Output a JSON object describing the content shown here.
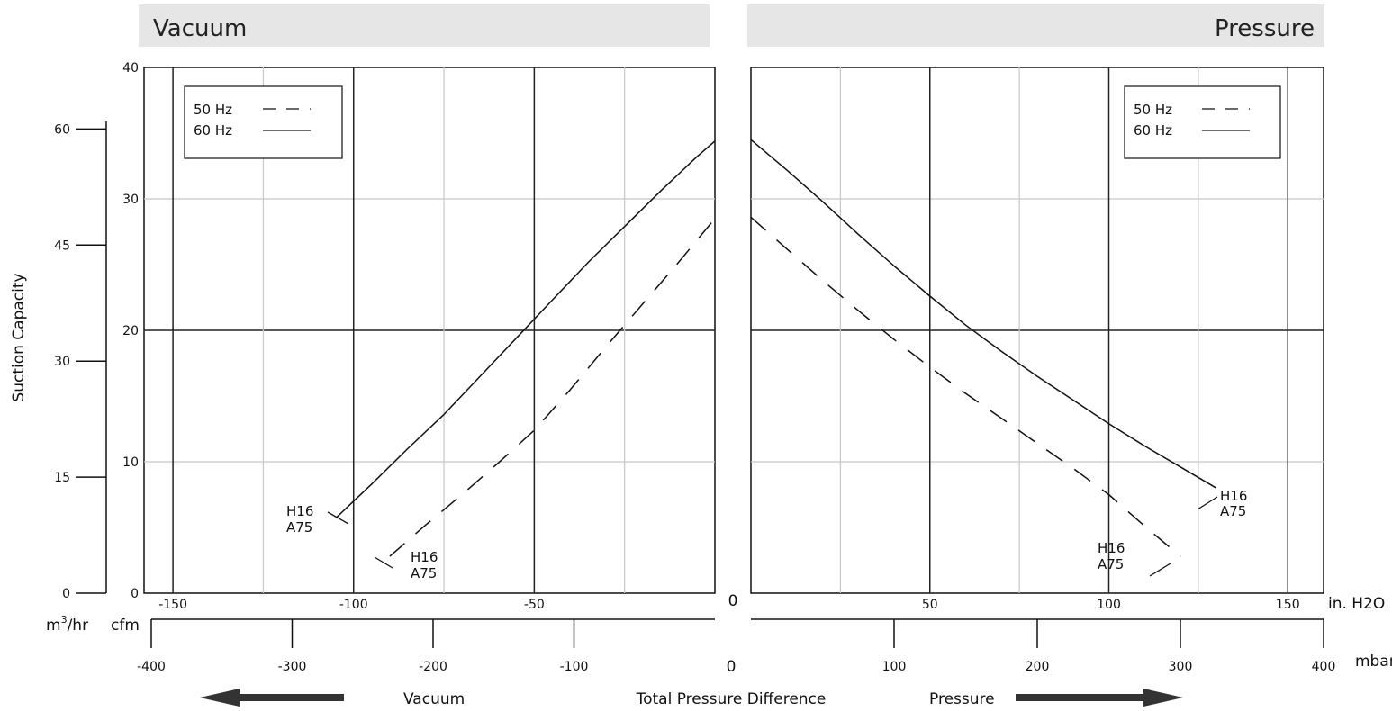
{
  "panels": {
    "vacuum_title": "Vacuum",
    "pressure_title": "Pressure"
  },
  "axes": {
    "ylabel": "Suction Capacity",
    "m3hr_unit": "m",
    "m3hr_sup": "3",
    "m3hr_suffix": "/hr",
    "cfm_unit": "cfm",
    "inh2o_unit": "in. H2O",
    "mbar_unit": "mbar",
    "zero_label": "0",
    "cfm_ticks": [
      "0",
      "10",
      "20",
      "30",
      "40"
    ],
    "m3hr_ticks": [
      "0",
      "15",
      "30",
      "45",
      "60"
    ],
    "vac_inh2o_ticks": [
      "-150",
      "-100",
      "-50"
    ],
    "prs_inh2o_ticks": [
      "50",
      "100",
      "150"
    ],
    "vac_mbar_ticks": [
      "-400",
      "-300",
      "-200",
      "-100"
    ],
    "prs_mbar_ticks": [
      "100",
      "200",
      "300",
      "400"
    ]
  },
  "bottom": {
    "vacuum_label": "Vacuum",
    "center_label": "Total Pressure Difference",
    "pressure_label": "Pressure"
  },
  "legend": {
    "hz50": "50 Hz",
    "hz60": "60 Hz"
  },
  "annotations": {
    "model_line1": "H16",
    "model_line2": "A75"
  },
  "colors": {
    "header_bg": "#e6e6e6",
    "grid_major": "#222222",
    "grid_minor": "#c8c8c8",
    "line": "#111111",
    "arrow": "#333333"
  },
  "chart_data": [
    {
      "panel": "Vacuum",
      "type": "line",
      "xlabel": "in. H2O",
      "ylabel": "cfm",
      "xlim": [
        -160,
        0
      ],
      "ylim": [
        0,
        40
      ],
      "series": [
        {
          "name": "60 Hz",
          "style": "solid",
          "x": [
            -105,
            -95,
            -85,
            -75,
            -65,
            -55,
            -45,
            -35,
            -25,
            -15,
            -5,
            0
          ],
          "y": [
            5.7,
            8.3,
            11.0,
            13.6,
            16.5,
            19.4,
            22.3,
            25.2,
            27.9,
            30.6,
            33.2,
            34.4
          ]
        },
        {
          "name": "50 Hz",
          "style": "dashed",
          "x": [
            -90,
            -80,
            -70,
            -60,
            -50,
            -40,
            -30,
            -20,
            -10,
            0
          ],
          "y": [
            2.8,
            5.2,
            7.5,
            9.9,
            12.4,
            15.5,
            18.8,
            22.0,
            25.2,
            28.5
          ]
        }
      ],
      "annotations": [
        {
          "text": "H16 A75",
          "series": "60 Hz",
          "at_x": -105
        },
        {
          "text": "H16 A75",
          "series": "50 Hz",
          "at_x": -90
        }
      ]
    },
    {
      "panel": "Pressure",
      "type": "line",
      "xlabel": "in. H2O",
      "ylabel": "cfm",
      "xlim": [
        0,
        160
      ],
      "ylim": [
        0,
        40
      ],
      "series": [
        {
          "name": "60 Hz",
          "style": "solid",
          "x": [
            0,
            10,
            20,
            30,
            40,
            50,
            60,
            70,
            80,
            90,
            100,
            110,
            120,
            130
          ],
          "y": [
            34.5,
            32.2,
            29.8,
            27.3,
            24.9,
            22.6,
            20.4,
            18.4,
            16.5,
            14.7,
            12.9,
            11.2,
            9.6,
            8.0
          ]
        },
        {
          "name": "50 Hz",
          "style": "dashed",
          "x": [
            0,
            10,
            20,
            30,
            40,
            50,
            60,
            70,
            80,
            90,
            100,
            110,
            120
          ],
          "y": [
            28.6,
            26.2,
            23.8,
            21.5,
            19.3,
            17.2,
            15.2,
            13.3,
            11.4,
            9.5,
            7.5,
            5.1,
            2.8
          ]
        }
      ],
      "annotations": [
        {
          "text": "H16 A75",
          "series": "60 Hz",
          "at_x": 130
        },
        {
          "text": "H16 A75",
          "series": "50 Hz",
          "at_x": 100
        }
      ]
    }
  ]
}
